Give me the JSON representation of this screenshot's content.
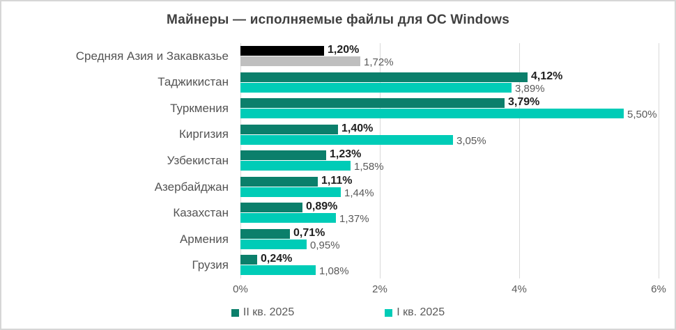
{
  "chart_data": {
    "type": "bar",
    "orientation": "horizontal",
    "title": "Майнеры — исполняемые файлы для ОС Windows",
    "categories": [
      "Средняя Азия и Закавказье",
      "Таджикистан",
      "Туркмения",
      "Киргизия",
      "Узбекистан",
      "Азербайджан",
      "Казахстан",
      "Армения",
      "Грузия"
    ],
    "series": [
      {
        "name": "II кв. 2025",
        "color": "#0b7f6b",
        "values": [
          1.2,
          4.12,
          3.79,
          1.4,
          1.23,
          1.11,
          0.89,
          0.71,
          0.24
        ],
        "labels": [
          "1,20%",
          "4,12%",
          "3,79%",
          "1,40%",
          "1,23%",
          "1,11%",
          "0,89%",
          "0,71%",
          "0,24%"
        ]
      },
      {
        "name": "I кв. 2025",
        "color": "#00ccb7",
        "values": [
          1.72,
          3.89,
          5.5,
          3.05,
          1.58,
          1.44,
          1.37,
          0.95,
          1.08
        ],
        "labels": [
          "1,72%",
          "3,89%",
          "5,50%",
          "3,05%",
          "1,58%",
          "1,44%",
          "1,37%",
          "0,95%",
          "1,08%"
        ]
      }
    ],
    "highlight_row": {
      "index": 0,
      "colors": [
        "#000000",
        "#bfbfbf"
      ]
    },
    "xlim": [
      0,
      6
    ],
    "x_ticks": [
      {
        "label": "0%",
        "value": 0
      },
      {
        "label": "2%",
        "value": 2
      },
      {
        "label": "4%",
        "value": 4
      },
      {
        "label": "6%",
        "value": 6
      }
    ],
    "grid": true,
    "legend_position": "bottom"
  },
  "colors": {
    "series_q2_2025": "#0b7f6b",
    "series_q1_2025": "#00ccb7",
    "highlight_q2": "#000000",
    "highlight_q1": "#bfbfbf",
    "gridline": "#d9d9d9",
    "title_text": "#404040",
    "value_label_strong": "#1f1f1f",
    "value_label_muted": "#595959",
    "frame_border": "#d6d6d6"
  }
}
